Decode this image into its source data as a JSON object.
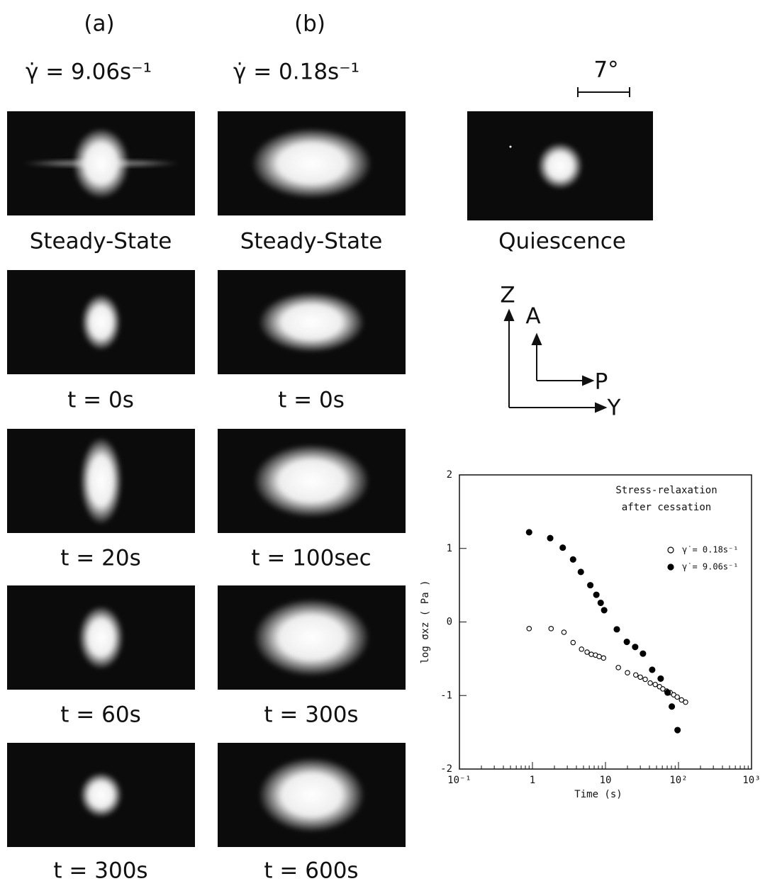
{
  "panels": {
    "a": {
      "label": "(a)",
      "rate": "γ̇ = 9.06s⁻¹",
      "captions": [
        "Steady-State",
        "t = 0s",
        "t = 20s",
        "t = 60s",
        "t = 300s"
      ]
    },
    "b": {
      "label": "(b)",
      "rate": "γ̇ = 0.18s⁻¹",
      "captions": [
        "Steady-State",
        "t = 0s",
        "t = 100sec",
        "t = 300s",
        "t = 600s"
      ]
    },
    "quiescence": {
      "scale": "7°",
      "caption": "Quiescence"
    },
    "axes": {
      "z": "Z",
      "a": "A",
      "p": "P",
      "y": "Y"
    }
  },
  "chart_data": {
    "type": "scatter",
    "annotation": [
      "Stress-relaxation",
      "after cessation"
    ],
    "xlabel": "Time (s)",
    "ylabel": "log σxz ( Pa )",
    "xscale": "log",
    "xlim": [
      0.1,
      1000
    ],
    "xticks": [
      {
        "value": 0.1,
        "label": "10⁻¹"
      },
      1,
      10,
      {
        "value": 100,
        "label": "10²"
      },
      {
        "value": 1000,
        "label": "10³"
      }
    ],
    "ylim": [
      -2,
      2
    ],
    "yticks": [
      -2,
      -1,
      0,
      1,
      2
    ],
    "series": [
      {
        "name": "γ̇ = 0.18s⁻¹",
        "color": "#000",
        "filled": false,
        "x": [
          0.9,
          1.8,
          2.7,
          3.6,
          4.7,
          5.6,
          6.4,
          7.3,
          8.2,
          9.4,
          15,
          20,
          26,
          30,
          35,
          41,
          48,
          55,
          61,
          69,
          77,
          86,
          96,
          110,
          125
        ],
        "values": [
          -0.09,
          -0.09,
          -0.14,
          -0.28,
          -0.37,
          -0.41,
          -0.44,
          -0.45,
          -0.47,
          -0.49,
          -0.62,
          -0.69,
          -0.72,
          -0.75,
          -0.78,
          -0.83,
          -0.85,
          -0.88,
          -0.91,
          -0.94,
          -0.96,
          -0.99,
          -1.02,
          -1.06,
          -1.09
        ]
      },
      {
        "name": "γ̇ = 9.06s⁻¹",
        "color": "#000",
        "filled": true,
        "x": [
          0.9,
          1.75,
          2.6,
          3.6,
          4.6,
          6.2,
          7.5,
          8.6,
          9.6,
          14.3,
          19.6,
          25.5,
          32.6,
          43.6,
          57,
          71,
          81,
          97
        ],
        "values": [
          1.22,
          1.14,
          1.01,
          0.85,
          0.68,
          0.5,
          0.37,
          0.26,
          0.16,
          -0.1,
          -0.27,
          -0.34,
          -0.43,
          -0.65,
          -0.77,
          -0.96,
          -1.15,
          -1.47
        ]
      }
    ]
  }
}
